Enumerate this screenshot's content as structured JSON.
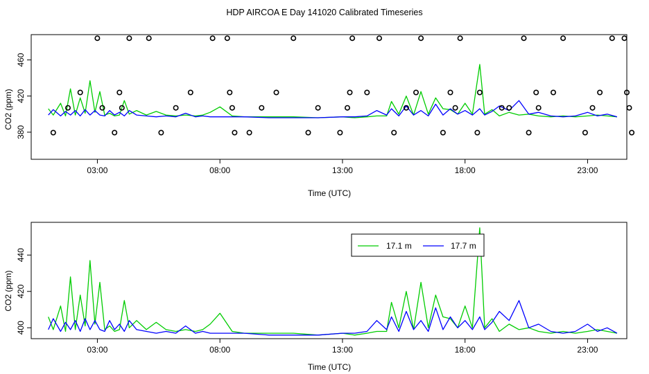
{
  "title": "HDP AIRCOA E  Day 141020  Calibrated Timeseries",
  "chart_data": [
    {
      "type": "line",
      "xlabel": "Time (UTC)",
      "ylabel": "CO2 (ppm)",
      "xlim": [
        0.3,
        24.6
      ],
      "ylim": [
        350,
        488
      ],
      "xticks": [
        {
          "value": 3,
          "label": "03:00"
        },
        {
          "value": 8,
          "label": "08:00"
        },
        {
          "value": 13,
          "label": "13:00"
        },
        {
          "value": 18,
          "label": "18:00"
        },
        {
          "value": 23,
          "label": "23:00"
        }
      ],
      "yticks": [
        {
          "value": 380,
          "label": "380"
        },
        {
          "value": 420,
          "label": "420"
        },
        {
          "value": 460,
          "label": "460"
        }
      ],
      "markers": {
        "style": "open-circle",
        "points": [
          [
            1.2,
            379.5
          ],
          [
            1.8,
            407
          ],
          [
            2.3,
            424
          ],
          [
            3.0,
            484
          ],
          [
            3.2,
            407
          ],
          [
            3.7,
            379.5
          ],
          [
            3.9,
            424
          ],
          [
            4.0,
            407
          ],
          [
            4.3,
            484
          ],
          [
            5.1,
            484
          ],
          [
            5.6,
            379.5
          ],
          [
            6.2,
            407
          ],
          [
            6.8,
            424
          ],
          [
            7.7,
            484
          ],
          [
            8.3,
            484
          ],
          [
            8.4,
            424
          ],
          [
            8.5,
            407
          ],
          [
            8.6,
            379.5
          ],
          [
            9.2,
            379.5
          ],
          [
            9.7,
            407
          ],
          [
            10.3,
            424
          ],
          [
            11.0,
            484
          ],
          [
            11.6,
            379.5
          ],
          [
            12.0,
            407
          ],
          [
            12.9,
            379.5
          ],
          [
            13.2,
            407
          ],
          [
            13.3,
            424
          ],
          [
            13.4,
            484
          ],
          [
            14.0,
            424
          ],
          [
            14.5,
            484
          ],
          [
            15.1,
            379.5
          ],
          [
            15.6,
            407
          ],
          [
            16.0,
            424
          ],
          [
            16.2,
            484
          ],
          [
            17.1,
            379.5
          ],
          [
            17.4,
            424
          ],
          [
            17.6,
            407
          ],
          [
            17.8,
            484
          ],
          [
            18.5,
            379.5
          ],
          [
            18.6,
            424
          ],
          [
            19.5,
            407
          ],
          [
            19.8,
            407
          ],
          [
            20.4,
            484
          ],
          [
            20.6,
            379.5
          ],
          [
            20.9,
            424
          ],
          [
            21.0,
            407
          ],
          [
            21.6,
            424
          ],
          [
            22.0,
            484
          ],
          [
            22.9,
            379.5
          ],
          [
            23.2,
            407
          ],
          [
            23.5,
            424
          ],
          [
            24.0,
            484
          ],
          [
            24.5,
            484
          ],
          [
            24.6,
            424
          ],
          [
            24.7,
            407
          ],
          [
            24.8,
            379.5
          ]
        ]
      }
    },
    {
      "type": "line",
      "xlabel": "Time (UTC)",
      "ylabel": "CO2 (ppm)",
      "xlim": [
        0.3,
        24.6
      ],
      "ylim": [
        394,
        458
      ],
      "xticks": [
        {
          "value": 3,
          "label": "03:00"
        },
        {
          "value": 8,
          "label": "08:00"
        },
        {
          "value": 13,
          "label": "13:00"
        },
        {
          "value": 18,
          "label": "18:00"
        },
        {
          "value": 23,
          "label": "23:00"
        }
      ],
      "yticks": [
        {
          "value": 400,
          "label": "400"
        },
        {
          "value": 420,
          "label": "420"
        },
        {
          "value": 440,
          "label": "440"
        }
      ],
      "legend": {
        "placement": "top-right"
      }
    }
  ],
  "series": [
    {
      "name": "17.1 m",
      "color": "#00cc00",
      "x": [
        1.0,
        1.2,
        1.5,
        1.7,
        1.9,
        2.1,
        2.3,
        2.5,
        2.7,
        2.9,
        3.1,
        3.3,
        3.5,
        3.7,
        3.9,
        4.1,
        4.3,
        4.6,
        5.0,
        5.4,
        5.8,
        6.2,
        6.6,
        7.0,
        7.3,
        7.6,
        8.0,
        8.5,
        9.0,
        10.0,
        11.0,
        12.0,
        13.0,
        13.5,
        14.0,
        14.4,
        14.8,
        15.0,
        15.3,
        15.6,
        15.9,
        16.2,
        16.5,
        16.8,
        17.1,
        17.4,
        17.7,
        18.0,
        18.3,
        18.6,
        18.8,
        19.1,
        19.4,
        19.8,
        20.2,
        20.6,
        21.0,
        21.5,
        22.0,
        22.5,
        23.0,
        23.4,
        23.8,
        24.2
      ],
      "y": [
        406,
        399,
        412,
        398,
        428,
        399,
        418,
        401,
        437,
        402,
        425,
        399,
        401,
        398,
        399,
        415,
        400,
        404,
        399,
        403,
        399,
        398,
        399,
        398,
        399,
        402,
        408,
        398,
        397,
        397,
        397,
        396,
        397,
        396,
        397,
        398,
        398,
        414,
        400,
        420,
        399,
        425,
        400,
        418,
        406,
        405,
        400,
        412,
        400,
        455,
        400,
        405,
        398,
        402,
        399,
        400,
        398,
        397,
        398,
        397,
        398,
        399,
        398,
        397
      ]
    },
    {
      "name": "17.7 m",
      "color": "#0000ff",
      "x": [
        1.0,
        1.2,
        1.5,
        1.7,
        1.9,
        2.1,
        2.3,
        2.5,
        2.7,
        2.9,
        3.1,
        3.3,
        3.5,
        3.7,
        3.9,
        4.1,
        4.3,
        4.6,
        5.0,
        5.4,
        5.8,
        6.2,
        6.6,
        7.0,
        7.3,
        7.6,
        8.0,
        8.5,
        9.0,
        10.0,
        11.0,
        12.0,
        13.0,
        13.5,
        14.0,
        14.4,
        14.8,
        15.0,
        15.3,
        15.6,
        15.9,
        16.2,
        16.5,
        16.8,
        17.1,
        17.4,
        17.7,
        18.0,
        18.3,
        18.6,
        18.8,
        19.1,
        19.4,
        19.8,
        20.2,
        20.6,
        21.0,
        21.5,
        22.0,
        22.5,
        23.0,
        23.4,
        23.8,
        24.2
      ],
      "y": [
        399,
        405,
        398,
        403,
        399,
        404,
        398,
        405,
        399,
        404,
        399,
        398,
        404,
        399,
        402,
        398,
        404,
        399,
        398,
        397,
        398,
        397,
        401,
        397,
        398,
        397,
        397,
        397,
        397,
        396,
        396,
        396,
        397,
        397,
        398,
        404,
        399,
        406,
        398,
        409,
        399,
        404,
        398,
        411,
        399,
        406,
        400,
        404,
        399,
        406,
        399,
        403,
        409,
        404,
        415,
        400,
        402,
        398,
        397,
        398,
        402,
        398,
        400,
        397
      ]
    }
  ]
}
